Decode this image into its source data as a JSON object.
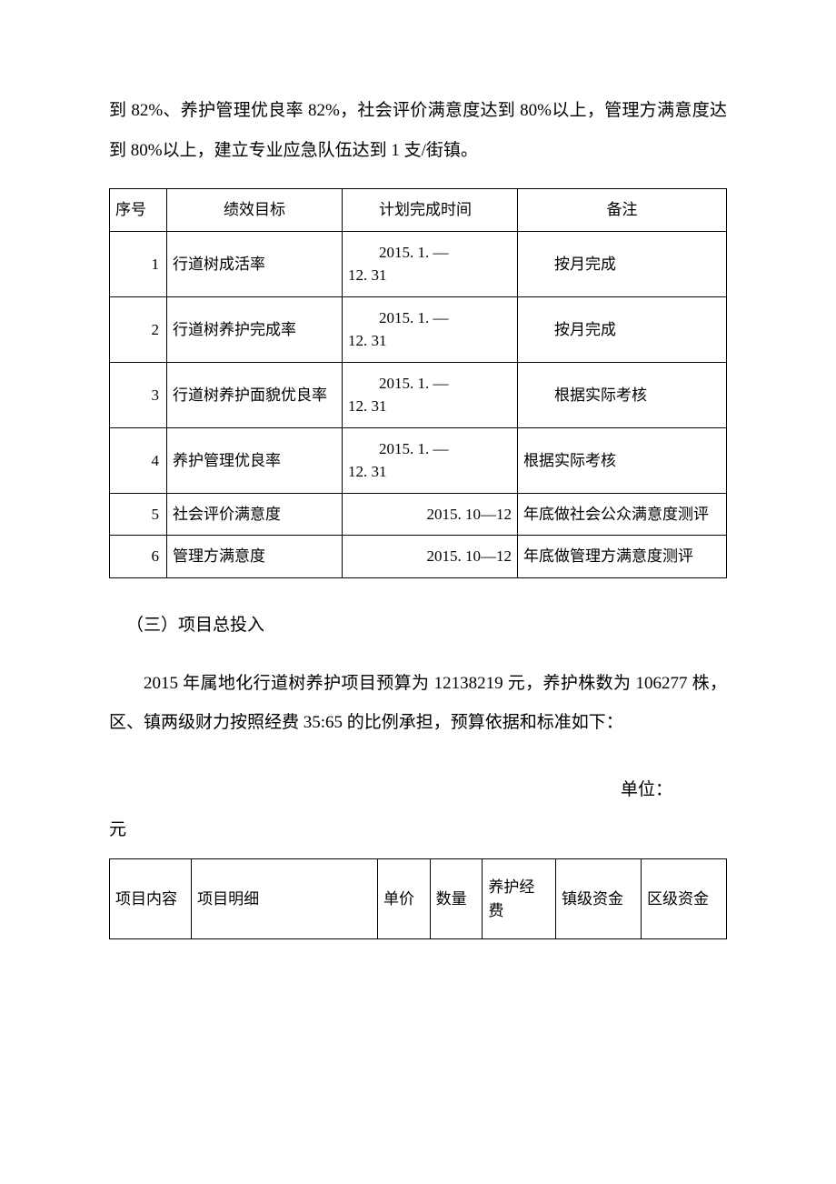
{
  "intro_para": "到 82%、养护管理优良率 82%，社会评价满意度达到 80%以上，管理方满意度达到 80%以上，建立专业应急队伍达到 1 支/街镇。",
  "table1": {
    "headers": {
      "c0": "序号",
      "c1": "绩效目标",
      "c2_prefix": "",
      "c2": "计划完成时间",
      "c3": "备注"
    },
    "rows": [
      {
        "n": "1",
        "goal": "行道树成活率",
        "time_l1": "2015. 1. —",
        "time_l2": "12. 31",
        "note": "按月完成",
        "note_indent": true
      },
      {
        "n": "2",
        "goal": "行道树养护完成率",
        "time_l1": "2015. 1. —",
        "time_l2": "12. 31",
        "note": "按月完成",
        "note_indent": true
      },
      {
        "n": "3",
        "goal": "行道树养护面貌优良率",
        "time_l1": "2015. 1. —",
        "time_l2": "12. 31",
        "note": "根据实际考核",
        "note_indent": true
      },
      {
        "n": "4",
        "goal": "养护管理优良率",
        "time_l1": "2015. 1. —",
        "time_l2": "12. 31",
        "note": "根据实际考核",
        "note_indent": false
      },
      {
        "n": "5",
        "goal": "社会评价满意度",
        "time_single": "2015. 10—12",
        "note": "年底做社会公众满意度测评",
        "note_indent": false
      },
      {
        "n": "6",
        "goal": "管理方满意度",
        "time_single": "2015. 10—12",
        "note": "年底做管理方满意度测评",
        "note_indent": false
      }
    ]
  },
  "heading": "（三）项目总投入",
  "body_para": "2015 年属地化行道树养护项目预算为 12138219 元，养护株数为 106277 株，区、镇两级财力按照经费 35:65 的比例承担，预算依据和标准如下：",
  "unit_label_l1": "单位：",
  "unit_label_l2": "元",
  "table2": {
    "headers": {
      "c0": "项目内容",
      "c1": "项目明细",
      "c2": "单价",
      "c3": "数量",
      "c4": "养护经费",
      "c5": "镇级资金",
      "c6": "区级资金"
    }
  }
}
